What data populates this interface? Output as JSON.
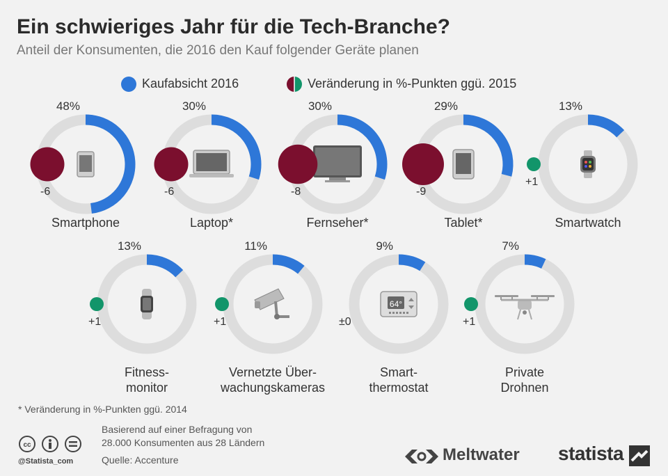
{
  "header": {
    "title": "Ein schwieriges Jahr für die Tech-Branche?",
    "subtitle": "Anteil der Konsumenten, die 2016 den Kauf folgender Geräte planen"
  },
  "legend": {
    "purchase_label": "Kaufabsicht 2016",
    "change_label": "Veränderung in %-Punkten ggü. 2015"
  },
  "colors": {
    "purchase": "#2e77d8",
    "ring_bg": "#dddddd",
    "negative": "#7b0f2e",
    "positive": "#12956a"
  },
  "chart_data": {
    "type": "donut",
    "max": 100,
    "series": [
      {
        "name": "Kaufabsicht 2016",
        "unit": "%"
      },
      {
        "name": "Veränderung in %-Punkten ggü. 2015",
        "unit": "%-Punkte"
      }
    ],
    "items": [
      {
        "category": "Smartphone",
        "label_lines": [
          "Smartphone"
        ],
        "value": 48,
        "value_label": "48%",
        "change": -6,
        "change_label": "-6",
        "icon": "smartphone-icon"
      },
      {
        "category": "Laptop*",
        "label_lines": [
          "Laptop*"
        ],
        "value": 30,
        "value_label": "30%",
        "change": -6,
        "change_label": "-6",
        "icon": "laptop-icon"
      },
      {
        "category": "Fernseher*",
        "label_lines": [
          "Fernseher*"
        ],
        "value": 30,
        "value_label": "30%",
        "change": -8,
        "change_label": "-8",
        "icon": "tv-icon"
      },
      {
        "category": "Tablet*",
        "label_lines": [
          "Tablet*"
        ],
        "value": 29,
        "value_label": "29%",
        "change": -9,
        "change_label": "-9",
        "icon": "tablet-icon"
      },
      {
        "category": "Smartwatch",
        "label_lines": [
          "Smartwatch"
        ],
        "value": 13,
        "value_label": "13%",
        "change": 1,
        "change_label": "+1",
        "icon": "smartwatch-icon"
      },
      {
        "category": "Fitness-monitor",
        "label_lines": [
          "Fitness-",
          "monitor"
        ],
        "value": 13,
        "value_label": "13%",
        "change": 1,
        "change_label": "+1",
        "icon": "fitness-tracker-icon"
      },
      {
        "category": "Vernetzte Überwachungskameras",
        "label_lines": [
          "Vernetzte Über-",
          "wachungskameras"
        ],
        "value": 11,
        "value_label": "11%",
        "change": 1,
        "change_label": "+1",
        "icon": "security-camera-icon"
      },
      {
        "category": "Smart-thermostat",
        "label_lines": [
          "Smart-",
          "thermostat"
        ],
        "value": 9,
        "value_label": "9%",
        "change": 0,
        "change_label": "±0",
        "icon": "thermostat-icon",
        "icon_text": "64°"
      },
      {
        "category": "Private Drohnen",
        "label_lines": [
          "Private",
          "Drohnen"
        ],
        "value": 7,
        "value_label": "7%",
        "change": 1,
        "change_label": "+1",
        "icon": "drone-icon"
      }
    ]
  },
  "footer": {
    "footnote": "* Veränderung in %-Punkten ggü. 2014",
    "source_line1": "Basierend auf einer Befragung von",
    "source_line2": "28.000 Konsumenten aus 28 Ländern",
    "source_line3": "Quelle: Accenture",
    "handle": "@Statista_com",
    "partner_logo": "Meltwater",
    "brand_logo": "statista"
  }
}
